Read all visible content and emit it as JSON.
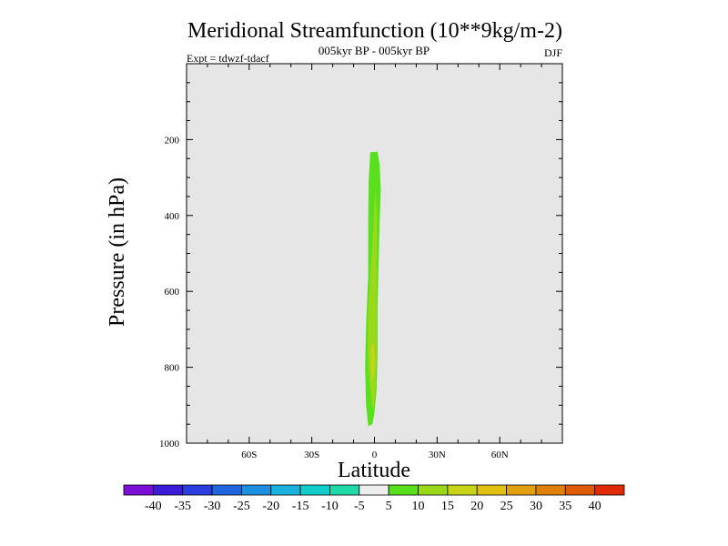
{
  "chart_data": {
    "type": "heatmap",
    "title": "Meridional Streamfunction (10**9kg/m-2)",
    "subtitle": "005kyr BP - 005kyr BP",
    "experiment": "Expt = tdwzf-tdacf",
    "season": "DJF",
    "xlabel": "Latitude",
    "ylabel": "Pressure (in hPa)",
    "xlim": [
      -90,
      90
    ],
    "ylim": [
      1000,
      0
    ],
    "y_reversed": true,
    "grid": false,
    "background_color": "#e6e6e6",
    "x_ticks": [
      {
        "value": -60,
        "label": "60S"
      },
      {
        "value": -30,
        "label": "30S"
      },
      {
        "value": 0,
        "label": "0"
      },
      {
        "value": 30,
        "label": "30N"
      },
      {
        "value": 60,
        "label": "60N"
      }
    ],
    "y_ticks": [
      {
        "value": 200,
        "label": "200"
      },
      {
        "value": 400,
        "label": "400"
      },
      {
        "value": 600,
        "label": "600"
      },
      {
        "value": 800,
        "label": "800"
      },
      {
        "value": 1000,
        "label": "1000"
      }
    ],
    "contour_levels": [
      -40,
      -35,
      -30,
      -25,
      -20,
      -15,
      -10,
      -5,
      5,
      10,
      15,
      20,
      25,
      30,
      35,
      40
    ],
    "colorbar_colors": [
      "#7b0fd8",
      "#3b1ad8",
      "#2a3ee0",
      "#1f66e0",
      "#1d8fe0",
      "#19b2dc",
      "#15cccc",
      "#1ed8a8",
      "#eeeeee",
      "#58e01c",
      "#9ad81a",
      "#c8d418",
      "#e0c010",
      "#e0a00e",
      "#e08008",
      "#e05a06",
      "#e02a04"
    ],
    "filled_regions": [
      {
        "level_range": [
          5,
          10
        ],
        "color": "#58e01c",
        "outline": [
          [
            -2.0,
            233
          ],
          [
            1.5,
            232
          ],
          [
            2.5,
            265
          ],
          [
            3.0,
            330
          ],
          [
            2.5,
            420
          ],
          [
            2.0,
            520
          ],
          [
            1.5,
            640
          ],
          [
            1.5,
            760
          ],
          [
            1.0,
            860
          ],
          [
            0.0,
            920
          ],
          [
            -1.0,
            950
          ],
          [
            -3.0,
            955
          ],
          [
            -4.0,
            900
          ],
          [
            -4.5,
            800
          ],
          [
            -4.0,
            690
          ],
          [
            -3.0,
            560
          ],
          [
            -3.0,
            420
          ],
          [
            -2.8,
            310
          ]
        ]
      },
      {
        "level_range": [
          10,
          15
        ],
        "color": "#9ad81a",
        "outline": [
          [
            0.3,
            325
          ],
          [
            1.2,
            400
          ],
          [
            1.2,
            520
          ],
          [
            1.0,
            640
          ],
          [
            1.0,
            770
          ],
          [
            0.5,
            860
          ],
          [
            -0.3,
            910
          ],
          [
            -1.2,
            900
          ],
          [
            -2.4,
            840
          ],
          [
            -3.2,
            760
          ],
          [
            -3.0,
            650
          ],
          [
            -2.0,
            560
          ],
          [
            -1.0,
            480
          ],
          [
            -0.3,
            400
          ]
        ]
      },
      {
        "level_range": [
          15,
          20
        ],
        "color": "#c8d418",
        "outline": [
          [
            -0.3,
            740
          ],
          [
            0.2,
            780
          ],
          [
            -0.3,
            825
          ],
          [
            -1.0,
            835
          ],
          [
            -1.6,
            805
          ],
          [
            -1.8,
            760
          ],
          [
            -1.2,
            735
          ]
        ]
      }
    ]
  }
}
